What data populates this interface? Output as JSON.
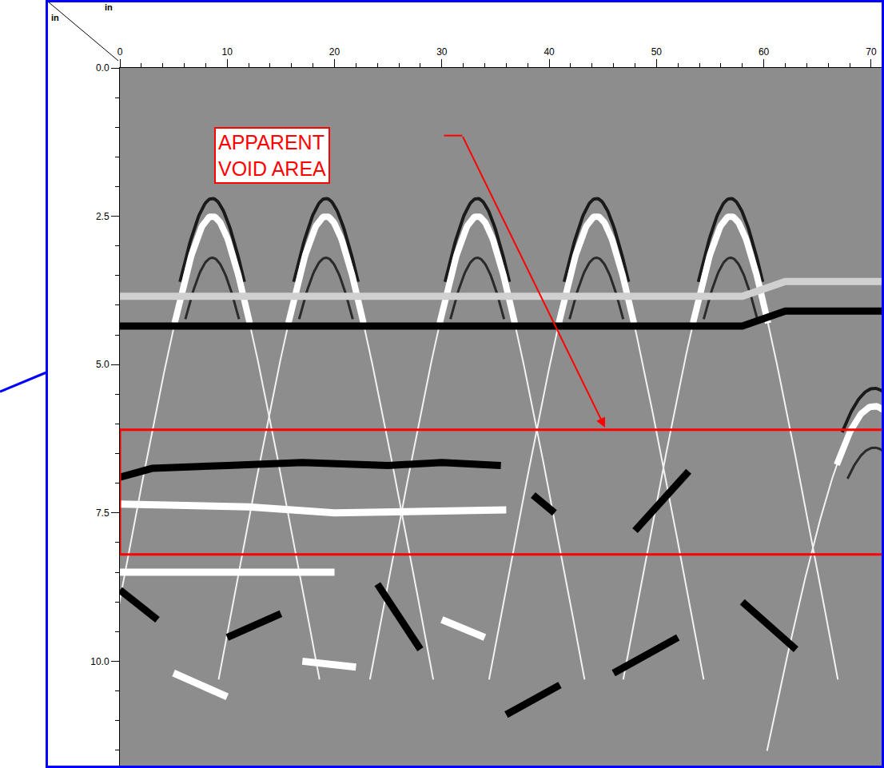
{
  "chart_data": {
    "type": "radargram",
    "x_label": "in",
    "y_label": "in",
    "xlim": [
      0,
      71.2
    ],
    "xticks": [
      0,
      10,
      20,
      30,
      40,
      50,
      60,
      70
    ],
    "ylim": [
      0,
      11.8
    ],
    "yticks": [
      {
        "value": 0,
        "label": "0.0"
      },
      2.5,
      {
        "value": 5,
        "label": "5.0"
      },
      7.5,
      {
        "value": 10,
        "label": "10.0"
      }
    ],
    "grid": false,
    "reflectors": [
      {
        "x": 8.6,
        "depth": 2.5
      },
      {
        "x": 19.2,
        "depth": 2.5
      },
      {
        "x": 33.3,
        "depth": 2.5
      },
      {
        "x": 44.4,
        "depth": 2.5
      },
      {
        "x": 56.9,
        "depth": 2.5
      },
      {
        "x": 70.3,
        "depth": 5.7
      }
    ],
    "reflections": [
      {
        "x": [
          0,
          58,
          62,
          71.2
        ],
        "depth": [
          3.85,
          3.85,
          3.6,
          3.6
        ],
        "color": "#d0d0d0"
      },
      {
        "x": [
          0,
          58,
          62,
          71.2
        ],
        "depth": [
          4.35,
          4.35,
          4.1,
          4.1
        ],
        "color": "#000000"
      },
      {
        "x": [
          0,
          3,
          10,
          17,
          25,
          30,
          35.5
        ],
        "depth": [
          6.9,
          6.75,
          6.7,
          6.65,
          6.7,
          6.65,
          6.7
        ],
        "color": "#000000"
      },
      {
        "x": [
          0,
          12,
          20,
          36
        ],
        "depth": [
          7.35,
          7.4,
          7.5,
          7.45
        ],
        "color": "#ffffff"
      },
      {
        "x": [
          38.5,
          40.5
        ],
        "depth": [
          7.2,
          7.5
        ],
        "color": "#000000"
      },
      {
        "x": [
          48,
          53
        ],
        "depth": [
          7.8,
          6.8
        ],
        "color": "#000000"
      },
      {
        "x": [
          0,
          20
        ],
        "depth": [
          8.5,
          8.5
        ],
        "color": "#ffffff"
      },
      {
        "x": [
          0,
          3.5
        ],
        "depth": [
          8.8,
          9.3
        ],
        "color": "#000000"
      },
      {
        "x": [
          10,
          15
        ],
        "depth": [
          9.6,
          9.2
        ],
        "color": "#000000"
      },
      {
        "x": [
          24,
          28
        ],
        "depth": [
          8.7,
          9.8
        ],
        "color": "#000000"
      },
      {
        "x": [
          36,
          41
        ],
        "depth": [
          10.9,
          10.4
        ],
        "color": "#000000"
      },
      {
        "x": [
          46,
          52
        ],
        "depth": [
          10.2,
          9.6
        ],
        "color": "#000000"
      },
      {
        "x": [
          58,
          63
        ],
        "depth": [
          9.0,
          9.8
        ],
        "color": "#000000"
      },
      {
        "x": [
          5,
          10
        ],
        "depth": [
          10.2,
          10.6
        ],
        "color": "#ffffff"
      },
      {
        "x": [
          17,
          22
        ],
        "depth": [
          10.0,
          10.1
        ],
        "color": "#ffffff"
      },
      {
        "x": [
          30,
          34
        ],
        "depth": [
          9.3,
          9.6
        ],
        "color": "#ffffff"
      }
    ],
    "highlight": {
      "x": [
        0,
        71.2
      ],
      "depth": [
        6.1,
        8.2
      ],
      "color": "#ff0000"
    },
    "annotations": [
      {
        "text": "APPARENT\nVOID AREA",
        "x": 8.8,
        "depth": 1.0,
        "color": "#ff0000",
        "arrow": {
          "x": [
            30.2,
            31.9,
            45.2
          ],
          "depth": [
            1.14,
            1.14,
            6.06
          ]
        }
      }
    ]
  }
}
